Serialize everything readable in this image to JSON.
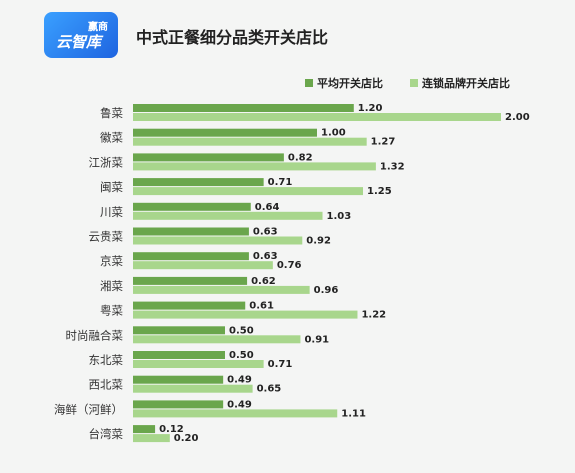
{
  "logo": {
    "line1": "赢商",
    "line2": "云智库"
  },
  "chart_data": {
    "type": "bar",
    "orientation": "horizontal",
    "title": "中式正餐细分品类开关店比",
    "categories": [
      "鲁菜",
      "徽菜",
      "江浙菜",
      "闽菜",
      "川菜",
      "云贵菜",
      "京菜",
      "湘菜",
      "粤菜",
      "时尚融合菜",
      "东北菜",
      "西北菜",
      "海鲜（河鲜）",
      "台湾菜"
    ],
    "series": [
      {
        "name": "平均开关店比",
        "color": "#6aa64c",
        "values": [
          1.2,
          1.0,
          0.82,
          0.71,
          0.64,
          0.63,
          0.63,
          0.62,
          0.61,
          0.5,
          0.5,
          0.49,
          0.49,
          0.12
        ],
        "labels": [
          "1.20",
          "1.00",
          "0.82",
          "0.71",
          "0.64",
          "0.63",
          "0.63",
          "0.62",
          "0.61",
          "0.50",
          "0.50",
          "0.49",
          "0.49",
          "0.12"
        ]
      },
      {
        "name": "连锁品牌开关店比",
        "color": "#a8d68c",
        "values": [
          2.0,
          1.27,
          1.32,
          1.25,
          1.03,
          0.92,
          0.76,
          0.96,
          1.22,
          0.91,
          0.71,
          0.65,
          1.11,
          0.2
        ],
        "labels": [
          "2.00",
          "1.27",
          "1.32",
          "1.25",
          "1.03",
          "0.92",
          "0.76",
          "0.96",
          "1.22",
          "0.91",
          "0.71",
          "0.65",
          "1.11",
          "0.20"
        ]
      }
    ],
    "xlim": [
      0,
      2.0
    ],
    "legend_position": "top-right",
    "grid": false
  }
}
